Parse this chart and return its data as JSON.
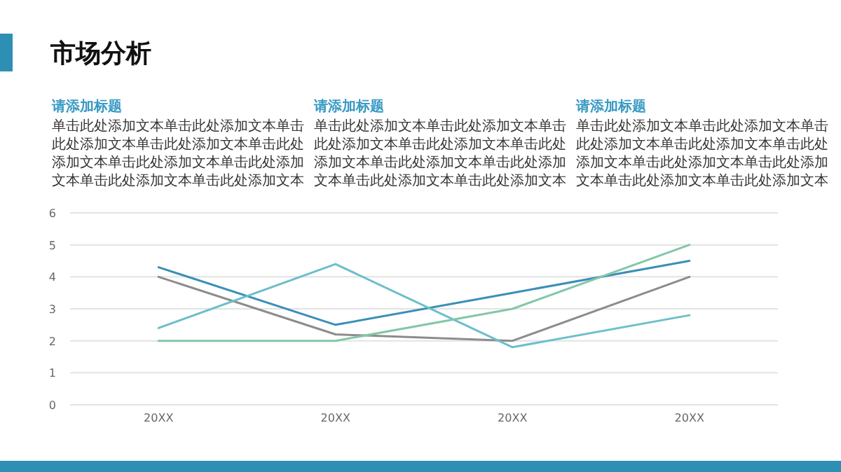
{
  "chart_data": {
    "type": "line",
    "title": "市场分析",
    "annotations": [
      "请添加标题",
      "单击此处添加文本单击此处添加文本单击此处添加文本单击此处添加文本单击此处添加文本单击此处添加文本单击此处添加文本单击此处添加文本单击此处添加文本",
      "请添加标题",
      "单击此处添加文本单击此处添加文本单击此处添加文本单击此处添加文本单击此处添加文本单击此处添加文本单击此处添加文本单击此处添加文本单击此处添加文本",
      "请添加标题",
      "单击此处添加文本单击此处添加文本单击此处添加文本单击此处添加文本单击此处添加文本单击此处添加文本单击此处添加文本单击此处添加文本单击此处添加文本"
    ],
    "categories": [
      "20XX",
      "20XX",
      "20XX",
      "20XX"
    ],
    "series": [
      {
        "color": "#3a8fb7",
        "values": [
          4.3,
          2.5,
          3.5,
          4.5
        ]
      },
      {
        "color": "#8c8c8c",
        "values": [
          4,
          2.2,
          2,
          4
        ]
      },
      {
        "color": "#6cbfc9",
        "values": [
          2.4,
          4.4,
          1.8,
          2.8
        ]
      },
      {
        "color": "#84c6a8",
        "values": [
          2,
          2,
          3,
          5
        ]
      }
    ],
    "ylim": [
      0,
      6
    ],
    "yticks": [
      0,
      1,
      2,
      3,
      4,
      5,
      6
    ],
    "grid": "y",
    "marker": "none",
    "line_style": "solid"
  }
}
